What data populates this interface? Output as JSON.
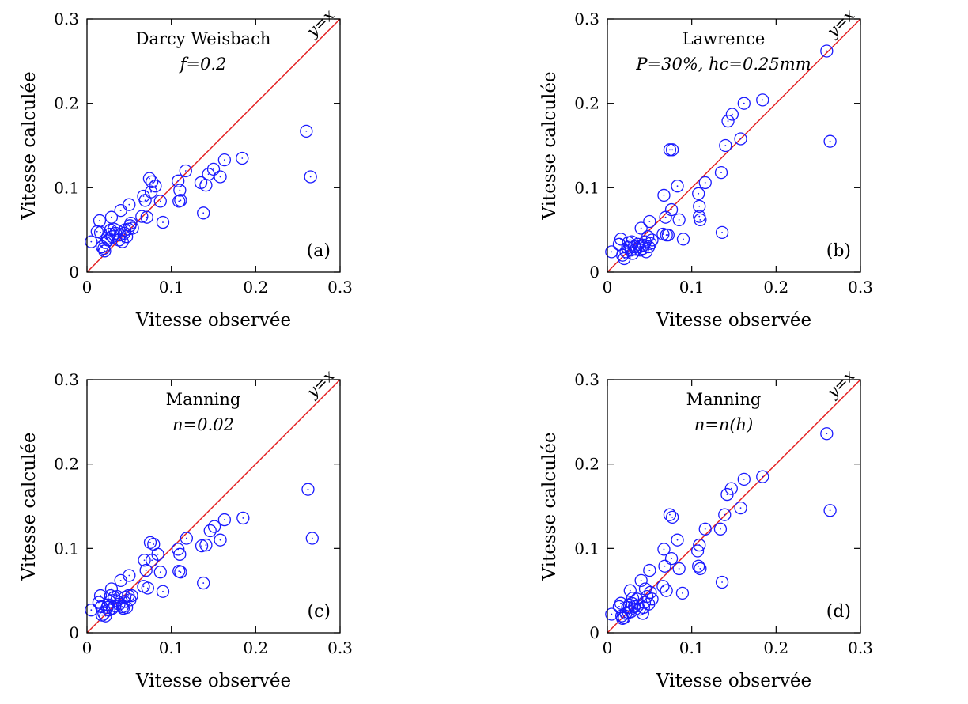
{
  "chart_data": [
    {
      "type": "scatter",
      "panel_label": "(a)",
      "title": "Darcy Weisbach",
      "subtitle": "f=0.2",
      "xlabel": "Vitesse observée",
      "ylabel": "Vitesse calculée",
      "xlim": [
        0,
        0.3
      ],
      "ylim": [
        0,
        0.3
      ],
      "xticks": [
        "0",
        "0.1",
        "0.2",
        "0.3"
      ],
      "yticks": [
        "0",
        "0.1",
        "0.2",
        "0.3"
      ],
      "diagonal_label": "y=x",
      "marker_color": "#1a1aff",
      "line_color": "#e31a1c",
      "points": [
        [
          0.005,
          0.036
        ],
        [
          0.012,
          0.048
        ],
        [
          0.015,
          0.061
        ],
        [
          0.016,
          0.047
        ],
        [
          0.018,
          0.03
        ],
        [
          0.02,
          0.028
        ],
        [
          0.021,
          0.025
        ],
        [
          0.022,
          0.035
        ],
        [
          0.024,
          0.04
        ],
        [
          0.025,
          0.038
        ],
        [
          0.027,
          0.045
        ],
        [
          0.028,
          0.05
        ],
        [
          0.029,
          0.065
        ],
        [
          0.03,
          0.042
        ],
        [
          0.032,
          0.051
        ],
        [
          0.034,
          0.046
        ],
        [
          0.036,
          0.049
        ],
        [
          0.038,
          0.038
        ],
        [
          0.039,
          0.044
        ],
        [
          0.04,
          0.073
        ],
        [
          0.042,
          0.036
        ],
        [
          0.044,
          0.046
        ],
        [
          0.045,
          0.05
        ],
        [
          0.047,
          0.042
        ],
        [
          0.049,
          0.051
        ],
        [
          0.05,
          0.08
        ],
        [
          0.051,
          0.055
        ],
        [
          0.052,
          0.058
        ],
        [
          0.054,
          0.052
        ],
        [
          0.065,
          0.066
        ],
        [
          0.067,
          0.09
        ],
        [
          0.069,
          0.085
        ],
        [
          0.071,
          0.065
        ],
        [
          0.074,
          0.111
        ],
        [
          0.076,
          0.095
        ],
        [
          0.077,
          0.107
        ],
        [
          0.081,
          0.102
        ],
        [
          0.087,
          0.084
        ],
        [
          0.09,
          0.059
        ],
        [
          0.108,
          0.108
        ],
        [
          0.109,
          0.084
        ],
        [
          0.11,
          0.097
        ],
        [
          0.111,
          0.085
        ],
        [
          0.117,
          0.12
        ],
        [
          0.135,
          0.106
        ],
        [
          0.138,
          0.07
        ],
        [
          0.141,
          0.103
        ],
        [
          0.144,
          0.116
        ],
        [
          0.15,
          0.122
        ],
        [
          0.158,
          0.113
        ],
        [
          0.163,
          0.133
        ],
        [
          0.184,
          0.135
        ],
        [
          0.26,
          0.167
        ],
        [
          0.265,
          0.113
        ]
      ]
    },
    {
      "type": "scatter",
      "panel_label": "(b)",
      "title": "Lawrence",
      "subtitle": "P=30%, hc=0.25mm",
      "xlabel": "Vitesse observée",
      "ylabel": "Vitesse calculée",
      "xlim": [
        0,
        0.3
      ],
      "ylim": [
        0,
        0.3
      ],
      "xticks": [
        "0",
        "0.1",
        "0.2",
        "0.3"
      ],
      "yticks": [
        "0",
        "0.1",
        "0.2",
        "0.3"
      ],
      "diagonal_label": "y=x",
      "marker_color": "#1a1aff",
      "line_color": "#e31a1c",
      "points": [
        [
          0.005,
          0.024
        ],
        [
          0.014,
          0.033
        ],
        [
          0.016,
          0.039
        ],
        [
          0.018,
          0.02
        ],
        [
          0.02,
          0.016
        ],
        [
          0.022,
          0.024
        ],
        [
          0.024,
          0.029
        ],
        [
          0.025,
          0.035
        ],
        [
          0.027,
          0.031
        ],
        [
          0.028,
          0.026
        ],
        [
          0.029,
          0.036
        ],
        [
          0.03,
          0.022
        ],
        [
          0.032,
          0.03
        ],
        [
          0.034,
          0.027
        ],
        [
          0.036,
          0.033
        ],
        [
          0.038,
          0.03
        ],
        [
          0.039,
          0.026
        ],
        [
          0.04,
          0.052
        ],
        [
          0.042,
          0.028
        ],
        [
          0.043,
          0.032
        ],
        [
          0.045,
          0.036
        ],
        [
          0.046,
          0.024
        ],
        [
          0.048,
          0.042
        ],
        [
          0.049,
          0.03
        ],
        [
          0.05,
          0.06
        ],
        [
          0.051,
          0.034
        ],
        [
          0.053,
          0.038
        ],
        [
          0.066,
          0.045
        ],
        [
          0.067,
          0.091
        ],
        [
          0.069,
          0.065
        ],
        [
          0.07,
          0.044
        ],
        [
          0.072,
          0.044
        ],
        [
          0.074,
          0.145
        ],
        [
          0.076,
          0.074
        ],
        [
          0.077,
          0.145
        ],
        [
          0.083,
          0.102
        ],
        [
          0.085,
          0.062
        ],
        [
          0.09,
          0.039
        ],
        [
          0.108,
          0.093
        ],
        [
          0.109,
          0.066
        ],
        [
          0.109,
          0.078
        ],
        [
          0.11,
          0.062
        ],
        [
          0.116,
          0.106
        ],
        [
          0.135,
          0.118
        ],
        [
          0.136,
          0.047
        ],
        [
          0.14,
          0.15
        ],
        [
          0.143,
          0.179
        ],
        [
          0.148,
          0.187
        ],
        [
          0.158,
          0.158
        ],
        [
          0.162,
          0.2
        ],
        [
          0.184,
          0.204
        ],
        [
          0.26,
          0.262
        ],
        [
          0.264,
          0.155
        ]
      ]
    },
    {
      "type": "scatter",
      "panel_label": "(c)",
      "title": "Manning",
      "subtitle": "n=0.02",
      "xlabel": "Vitesse observée",
      "ylabel": "Vitesse calculée",
      "xlim": [
        0,
        0.3
      ],
      "ylim": [
        0,
        0.3
      ],
      "xticks": [
        "0",
        "0.1",
        "0.2",
        "0.3"
      ],
      "yticks": [
        "0",
        "0.1",
        "0.2",
        "0.3"
      ],
      "diagonal_label": "y=x",
      "marker_color": "#1a1aff",
      "line_color": "#e31a1c",
      "points": [
        [
          0.005,
          0.027
        ],
        [
          0.014,
          0.036
        ],
        [
          0.016,
          0.044
        ],
        [
          0.017,
          0.031
        ],
        [
          0.018,
          0.021
        ],
        [
          0.02,
          0.023
        ],
        [
          0.022,
          0.02
        ],
        [
          0.024,
          0.03
        ],
        [
          0.025,
          0.033
        ],
        [
          0.026,
          0.027
        ],
        [
          0.027,
          0.037
        ],
        [
          0.028,
          0.044
        ],
        [
          0.029,
          0.052
        ],
        [
          0.03,
          0.029
        ],
        [
          0.032,
          0.042
        ],
        [
          0.033,
          0.032
        ],
        [
          0.035,
          0.038
        ],
        [
          0.036,
          0.043
        ],
        [
          0.038,
          0.034
        ],
        [
          0.04,
          0.062
        ],
        [
          0.042,
          0.031
        ],
        [
          0.043,
          0.029
        ],
        [
          0.044,
          0.037
        ],
        [
          0.045,
          0.042
        ],
        [
          0.047,
          0.03
        ],
        [
          0.049,
          0.044
        ],
        [
          0.05,
          0.068
        ],
        [
          0.051,
          0.039
        ],
        [
          0.053,
          0.044
        ],
        [
          0.067,
          0.055
        ],
        [
          0.068,
          0.086
        ],
        [
          0.07,
          0.074
        ],
        [
          0.072,
          0.053
        ],
        [
          0.075,
          0.107
        ],
        [
          0.077,
          0.086
        ],
        [
          0.079,
          0.105
        ],
        [
          0.084,
          0.093
        ],
        [
          0.087,
          0.072
        ],
        [
          0.09,
          0.049
        ],
        [
          0.108,
          0.099
        ],
        [
          0.109,
          0.073
        ],
        [
          0.11,
          0.093
        ],
        [
          0.111,
          0.072
        ],
        [
          0.118,
          0.112
        ],
        [
          0.136,
          0.103
        ],
        [
          0.138,
          0.059
        ],
        [
          0.141,
          0.104
        ],
        [
          0.146,
          0.121
        ],
        [
          0.151,
          0.126
        ],
        [
          0.158,
          0.11
        ],
        [
          0.163,
          0.134
        ],
        [
          0.185,
          0.136
        ],
        [
          0.262,
          0.17
        ],
        [
          0.267,
          0.112
        ]
      ]
    },
    {
      "type": "scatter",
      "panel_label": "(d)",
      "title": "Manning",
      "subtitle": "n=n(h)",
      "xlabel": "Vitesse observée",
      "ylabel": "Vitesse calculée",
      "xlim": [
        0,
        0.3
      ],
      "ylim": [
        0,
        0.3
      ],
      "xticks": [
        "0",
        "0.1",
        "0.2",
        "0.3"
      ],
      "yticks": [
        "0",
        "0.1",
        "0.2",
        "0.3"
      ],
      "diagonal_label": "y=x",
      "marker_color": "#1a1aff",
      "line_color": "#e31a1c",
      "points": [
        [
          0.005,
          0.022
        ],
        [
          0.014,
          0.031
        ],
        [
          0.016,
          0.035
        ],
        [
          0.017,
          0.02
        ],
        [
          0.018,
          0.017
        ],
        [
          0.02,
          0.018
        ],
        [
          0.022,
          0.023
        ],
        [
          0.024,
          0.03
        ],
        [
          0.025,
          0.024
        ],
        [
          0.026,
          0.033
        ],
        [
          0.027,
          0.05
        ],
        [
          0.028,
          0.025
        ],
        [
          0.029,
          0.035
        ],
        [
          0.03,
          0.041
        ],
        [
          0.032,
          0.031
        ],
        [
          0.033,
          0.028
        ],
        [
          0.035,
          0.04
        ],
        [
          0.036,
          0.032
        ],
        [
          0.038,
          0.028
        ],
        [
          0.04,
          0.062
        ],
        [
          0.042,
          0.023
        ],
        [
          0.043,
          0.03
        ],
        [
          0.044,
          0.036
        ],
        [
          0.045,
          0.052
        ],
        [
          0.047,
          0.043
        ],
        [
          0.049,
          0.034
        ],
        [
          0.05,
          0.074
        ],
        [
          0.051,
          0.048
        ],
        [
          0.053,
          0.04
        ],
        [
          0.066,
          0.055
        ],
        [
          0.067,
          0.099
        ],
        [
          0.068,
          0.079
        ],
        [
          0.07,
          0.05
        ],
        [
          0.074,
          0.14
        ],
        [
          0.076,
          0.088
        ],
        [
          0.077,
          0.137
        ],
        [
          0.083,
          0.11
        ],
        [
          0.085,
          0.076
        ],
        [
          0.089,
          0.047
        ],
        [
          0.107,
          0.097
        ],
        [
          0.108,
          0.079
        ],
        [
          0.109,
          0.104
        ],
        [
          0.11,
          0.076
        ],
        [
          0.116,
          0.123
        ],
        [
          0.134,
          0.123
        ],
        [
          0.136,
          0.06
        ],
        [
          0.139,
          0.14
        ],
        [
          0.142,
          0.164
        ],
        [
          0.147,
          0.171
        ],
        [
          0.158,
          0.148
        ],
        [
          0.162,
          0.182
        ],
        [
          0.184,
          0.185
        ],
        [
          0.26,
          0.236
        ],
        [
          0.264,
          0.145
        ]
      ]
    }
  ]
}
